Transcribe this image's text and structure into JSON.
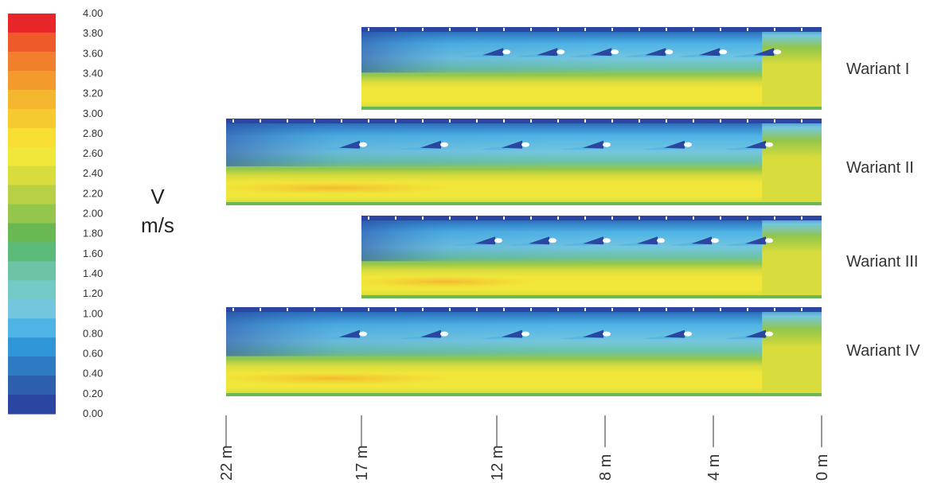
{
  "legend": {
    "quantity": "V",
    "unit": "m/s",
    "ticks": [
      "4.00",
      "3.80",
      "3.60",
      "3.40",
      "3.20",
      "3.00",
      "2.80",
      "2.60",
      "2.40",
      "2.20",
      "2.00",
      "1.80",
      "1.60",
      "1.40",
      "1.20",
      "1.00",
      "0.80",
      "0.60",
      "0.40",
      "0.20",
      "0.00"
    ],
    "colors": [
      "#e8262a",
      "#ee5a2a",
      "#f27f2b",
      "#f39a2c",
      "#f4b52f",
      "#f5c92f",
      "#f6df32",
      "#f1e63a",
      "#d8dc3c",
      "#b8d045",
      "#93c64b",
      "#6ab853",
      "#5dbb7a",
      "#6cc3a5",
      "#73c9c6",
      "#74c6df",
      "#4fb3e6",
      "#2f97d8",
      "#2f7bc3",
      "#2d5fae",
      "#2b46a0"
    ]
  },
  "variants": [
    {
      "label": "Wariant I",
      "start_m": 17,
      "end_m": 0,
      "vanes_m": [
        11.7,
        9.7,
        7.7,
        5.7,
        3.7,
        1.7
      ]
    },
    {
      "label": "Wariant II",
      "start_m": 22,
      "end_m": 0,
      "vanes_m": [
        17,
        14,
        11,
        8,
        5,
        2
      ]
    },
    {
      "label": "Wariant III",
      "start_m": 17,
      "end_m": 0,
      "vanes_m": [
        12,
        10,
        8,
        6,
        4,
        2
      ]
    },
    {
      "label": "Wariant IV",
      "start_m": 22,
      "end_m": 0,
      "vanes_m": [
        17,
        14,
        11,
        8,
        5,
        2
      ]
    }
  ],
  "distance_axis": {
    "labels": [
      "22 m",
      "17 m",
      "12 m",
      "8 m",
      "4 m",
      "0 m"
    ],
    "values": [
      22,
      17,
      12,
      8,
      4,
      0
    ]
  },
  "palette": {
    "dark_blue": "#2b46a0",
    "light_blue": "#4fb3e6",
    "cyan": "#73c9c6",
    "green": "#93c64b",
    "yellow_green": "#d8dc3c",
    "yellow": "#f1e63a",
    "orange": "#f4b52f"
  }
}
